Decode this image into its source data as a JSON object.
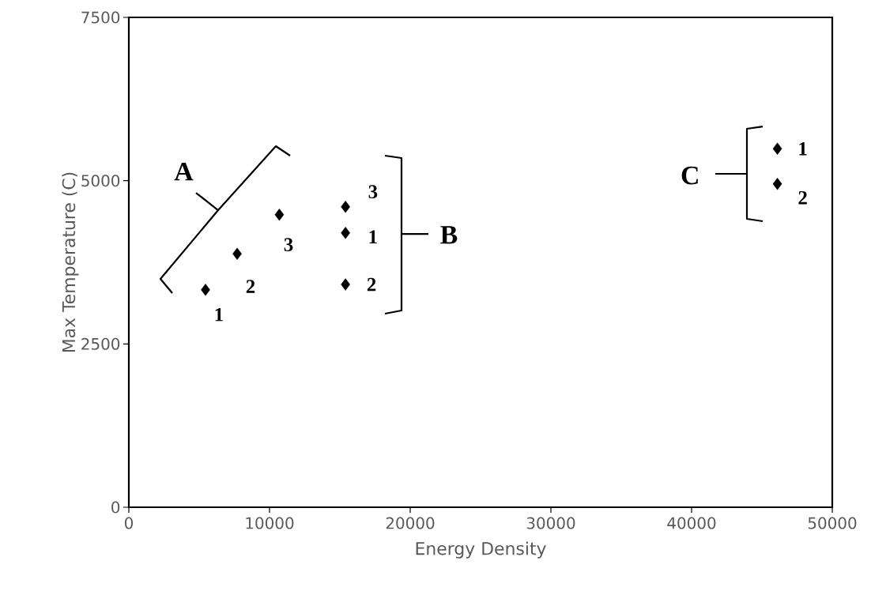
{
  "chart_data": {
    "type": "scatter",
    "xlabel": "Energy Density",
    "ylabel": "Max Temperature (C)",
    "xlim": [
      0,
      50000
    ],
    "ylim": [
      0,
      7500
    ],
    "xticks": [
      0,
      10000,
      20000,
      30000,
      40000,
      50000
    ],
    "yticks": [
      0,
      2500,
      5000,
      7500
    ],
    "marker": "diamond",
    "series": [
      {
        "color": "#000000",
        "x": [
          5450,
          7700,
          10700,
          15400,
          15400,
          15400,
          46100,
          46100
        ],
        "values": [
          3330,
          3880,
          4480,
          4600,
          4200,
          3410,
          5490,
          4950
        ]
      }
    ],
    "annotations": [
      "1",
      "2",
      "3",
      "3",
      "1",
      "2",
      "1",
      "2",
      "A",
      "B",
      "C"
    ]
  }
}
